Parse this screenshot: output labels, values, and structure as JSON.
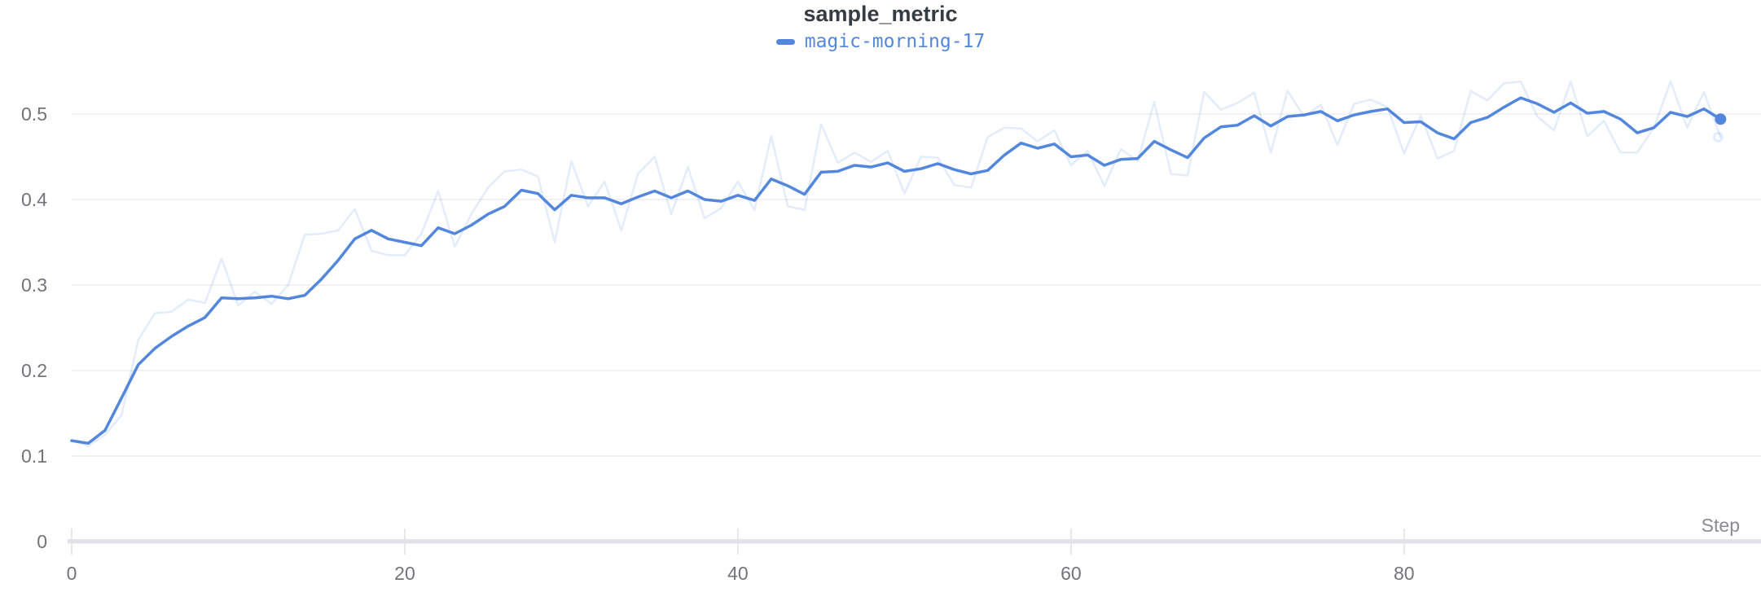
{
  "header": {
    "title": "sample_metric",
    "legend": [
      {
        "label": "magic-morning-17",
        "color": "#5387dd"
      }
    ]
  },
  "axes": {
    "x_label": "Step",
    "x_ticks": {
      "values": [
        0,
        20,
        40,
        60,
        80
      ],
      "labels": [
        "0",
        "20",
        "40",
        "60",
        "80"
      ]
    },
    "y_ticks": {
      "values": [
        0,
        0.1,
        0.2,
        0.3,
        0.4,
        0.5
      ],
      "labels": [
        "0",
        "0.1",
        "0.2",
        "0.3",
        "0.4",
        "0.5"
      ]
    }
  },
  "colors": {
    "accent": "#5387dd",
    "accent_faint": "rgba(83,135,221,0.16)",
    "gridline": "#ededf1",
    "axis_line": "#e3e3e7",
    "tick_mark": "#e7e7ea",
    "tick_text": "#73737d",
    "title_text": "#373b43",
    "background": "#ffffff"
  },
  "chart_data": {
    "type": "line",
    "title": "sample_metric",
    "xlabel": "Step",
    "ylabel": "",
    "xlim": [
      0,
      100.5
    ],
    "ylim": [
      0,
      0.56
    ],
    "grid": true,
    "legend_position": "top-center",
    "x_start": 0,
    "x_increment": 1,
    "series": [
      {
        "name": "magic-morning-17",
        "role": "smoothed",
        "color": "#5387dd",
        "line_width": 3.5,
        "end_marker": "filled-dot",
        "values": [
          0.118,
          0.115,
          0.13,
          0.168,
          0.207,
          0.226,
          0.24,
          0.252,
          0.262,
          0.285,
          0.284,
          0.285,
          0.287,
          0.284,
          0.288,
          0.307,
          0.329,
          0.354,
          0.364,
          0.354,
          0.35,
          0.346,
          0.367,
          0.36,
          0.37,
          0.383,
          0.392,
          0.411,
          0.407,
          0.388,
          0.405,
          0.402,
          0.402,
          0.395,
          0.403,
          0.41,
          0.402,
          0.41,
          0.4,
          0.398,
          0.405,
          0.399,
          0.424,
          0.416,
          0.406,
          0.432,
          0.433,
          0.44,
          0.438,
          0.443,
          0.433,
          0.436,
          0.442,
          0.435,
          0.43,
          0.434,
          0.452,
          0.466,
          0.46,
          0.465,
          0.45,
          0.452,
          0.44,
          0.447,
          0.448,
          0.468,
          0.458,
          0.449,
          0.472,
          0.485,
          0.487,
          0.498,
          0.486,
          0.497,
          0.499,
          0.503,
          0.492,
          0.499,
          0.503,
          0.506,
          0.49,
          0.491,
          0.478,
          0.471,
          0.49,
          0.496,
          0.508,
          0.519,
          0.512,
          0.502,
          0.513,
          0.501,
          0.503,
          0.494,
          0.478,
          0.484,
          0.502,
          0.497,
          0.506,
          0.494
        ]
      },
      {
        "name": "magic-morning-17 (original, unsmoothed)",
        "role": "original",
        "color": "rgba(83,135,221,0.16)",
        "line_width": 2.5,
        "end_marker": "open-dot",
        "values": [
          0.118,
          0.112,
          0.125,
          0.148,
          0.236,
          0.267,
          0.269,
          0.283,
          0.279,
          0.331,
          0.276,
          0.292,
          0.278,
          0.3,
          0.359,
          0.36,
          0.364,
          0.389,
          0.34,
          0.335,
          0.335,
          0.36,
          0.41,
          0.345,
          0.383,
          0.414,
          0.433,
          0.435,
          0.427,
          0.35,
          0.445,
          0.392,
          0.421,
          0.364,
          0.43,
          0.45,
          0.383,
          0.438,
          0.378,
          0.39,
          0.421,
          0.388,
          0.474,
          0.392,
          0.388,
          0.488,
          0.443,
          0.455,
          0.444,
          0.457,
          0.407,
          0.45,
          0.449,
          0.417,
          0.414,
          0.473,
          0.484,
          0.483,
          0.468,
          0.481,
          0.44,
          0.457,
          0.416,
          0.459,
          0.445,
          0.514,
          0.43,
          0.428,
          0.526,
          0.505,
          0.513,
          0.525,
          0.455,
          0.527,
          0.497,
          0.511,
          0.464,
          0.512,
          0.517,
          0.508,
          0.454,
          0.498,
          0.448,
          0.457,
          0.527,
          0.516,
          0.536,
          0.538,
          0.497,
          0.481,
          0.538,
          0.474,
          0.492,
          0.455,
          0.455,
          0.484,
          0.538,
          0.484,
          0.526,
          0.473
        ]
      }
    ]
  }
}
